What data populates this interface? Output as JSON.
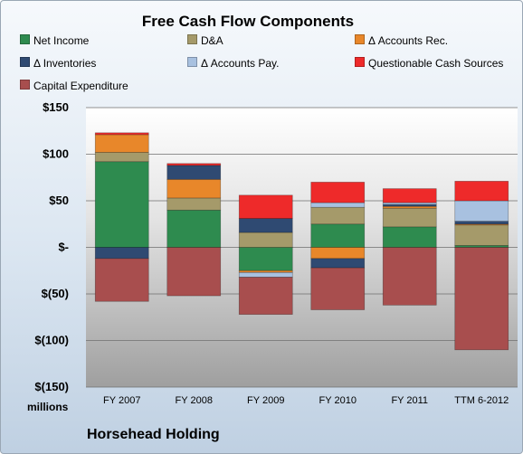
{
  "chart_data": {
    "type": "bar",
    "stacked": true,
    "title": "Free Cash Flow Components",
    "ylabel": "millions",
    "categories": [
      "FY 2007",
      "FY 2008",
      "FY 2009",
      "FY 2010",
      "FY 2011",
      "TTM 6-2012"
    ],
    "ylim": [
      -150,
      150
    ],
    "yticks": [
      150,
      100,
      50,
      0,
      -50,
      -100,
      -150
    ],
    "ytick_labels": [
      "$150",
      "$100",
      "$50",
      "$-",
      "$(50)",
      "$(100)",
      "$(150)"
    ],
    "grid": true,
    "legend_position": "top",
    "series": [
      {
        "name": "Net Income",
        "color": "#2e8b4f",
        "values": [
          92,
          40,
          -25,
          25,
          22,
          2
        ]
      },
      {
        "name": "D&A",
        "color": "#a59a6a",
        "values": [
          10,
          13,
          16,
          18,
          20,
          22
        ]
      },
      {
        "name": "Δ Accounts Rec.",
        "color": "#e8872a",
        "values": [
          19,
          20,
          -2,
          -12,
          2,
          1
        ]
      },
      {
        "name": "Δ Inventories",
        "color": "#2f4a72",
        "values": [
          -12,
          15,
          15,
          -10,
          2,
          3
        ]
      },
      {
        "name": "Δ Accounts Pay.",
        "color": "#a8c1e0",
        "values": [
          0,
          0,
          -5,
          5,
          2,
          22
        ]
      },
      {
        "name": "Questionable Cash Sources",
        "color": "#ee2a2a",
        "values": [
          2,
          2,
          25,
          22,
          15,
          21
        ]
      },
      {
        "name": "Capital Expenditure",
        "color": "#a84e4e",
        "values": [
          -46,
          -52,
          -40,
          -45,
          -62,
          -110
        ]
      }
    ]
  },
  "footer": {
    "company": "Horsehead Holding"
  }
}
